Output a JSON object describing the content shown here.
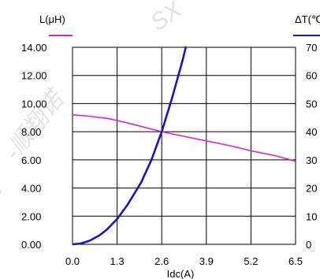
{
  "chart_data": {
    "type": "line",
    "title": "",
    "xlabel": "Idc(A)",
    "ylabel_left": "L(μH)",
    "ylabel_right": "ΔT(℃",
    "xlim": [
      0,
      6.5
    ],
    "ylim_left": [
      0,
      14
    ],
    "ylim_right": [
      0,
      70
    ],
    "x_ticks": [
      "0.0",
      "1.3",
      "2.6",
      "3.9",
      "5.2",
      "6.5"
    ],
    "y_left_ticks": [
      "0.00",
      "2.00",
      "4.00",
      "6.00",
      "8.00",
      "10.00",
      "12.00",
      "14.00"
    ],
    "y_right_ticks": [
      "0",
      "10",
      "20",
      "30",
      "40",
      "50",
      "60",
      "70"
    ],
    "grid": true,
    "watermark": [
      "SX",
      "-顺翔诺",
      "V"
    ],
    "colors": {
      "inductance": "#e020d0",
      "temperature": "#1414c8",
      "grid": "#000000",
      "watermark": "#e2e2e2"
    },
    "series": [
      {
        "name": "L(μH)",
        "axis": "left",
        "x": [
          0,
          0.5,
          1.0,
          1.3,
          1.8,
          2.6,
          3.2,
          3.9,
          4.6,
          5.2,
          5.9,
          6.5
        ],
        "y": [
          9.2,
          9.1,
          8.95,
          8.8,
          8.5,
          8.0,
          7.7,
          7.35,
          7.0,
          6.65,
          6.3,
          5.9
        ]
      },
      {
        "name": "ΔT(℃",
        "axis": "right",
        "x": [
          0,
          0.25,
          0.5,
          0.8,
          1.0,
          1.3,
          1.6,
          2.0,
          2.3,
          2.6,
          2.9,
          3.2,
          3.3
        ],
        "y": [
          0,
          0.3,
          1.3,
          3.3,
          5.2,
          9,
          14,
          22,
          30,
          40,
          52,
          65,
          70
        ]
      }
    ]
  }
}
